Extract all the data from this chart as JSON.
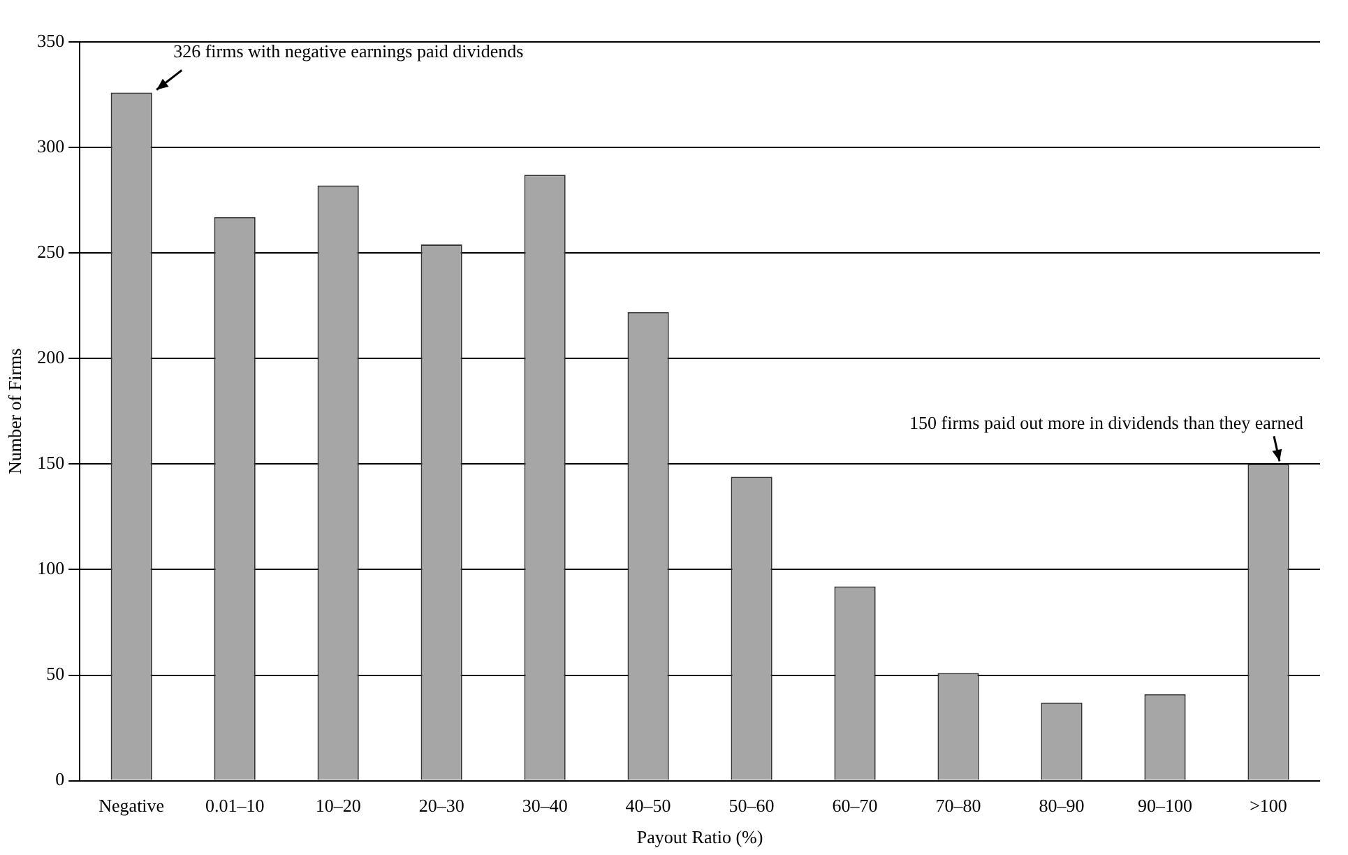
{
  "chart_data": {
    "type": "bar",
    "xlabel": "Payout Ratio (%)",
    "ylabel": "Number of Firms",
    "categories": [
      "Negative",
      "0.01–10",
      "10–20",
      "20–30",
      "30–40",
      "40–50",
      "50–60",
      "60–70",
      "70–80",
      "80–90",
      "90–100",
      ">100"
    ],
    "values": [
      326,
      267,
      282,
      254,
      287,
      222,
      144,
      92,
      51,
      37,
      41,
      150
    ],
    "color": "#a6a6a6",
    "ylim": [
      0,
      350
    ],
    "yticks": [
      0,
      50,
      100,
      150,
      200,
      250,
      300,
      350
    ],
    "grid": "y",
    "annotations": [
      {
        "text": "326 firms with negative earnings paid dividends",
        "x": "Negative",
        "y": 326
      },
      {
        "text": "150 firms paid out more in dividends than they earned",
        "x": ">100",
        "y": 150
      }
    ]
  }
}
